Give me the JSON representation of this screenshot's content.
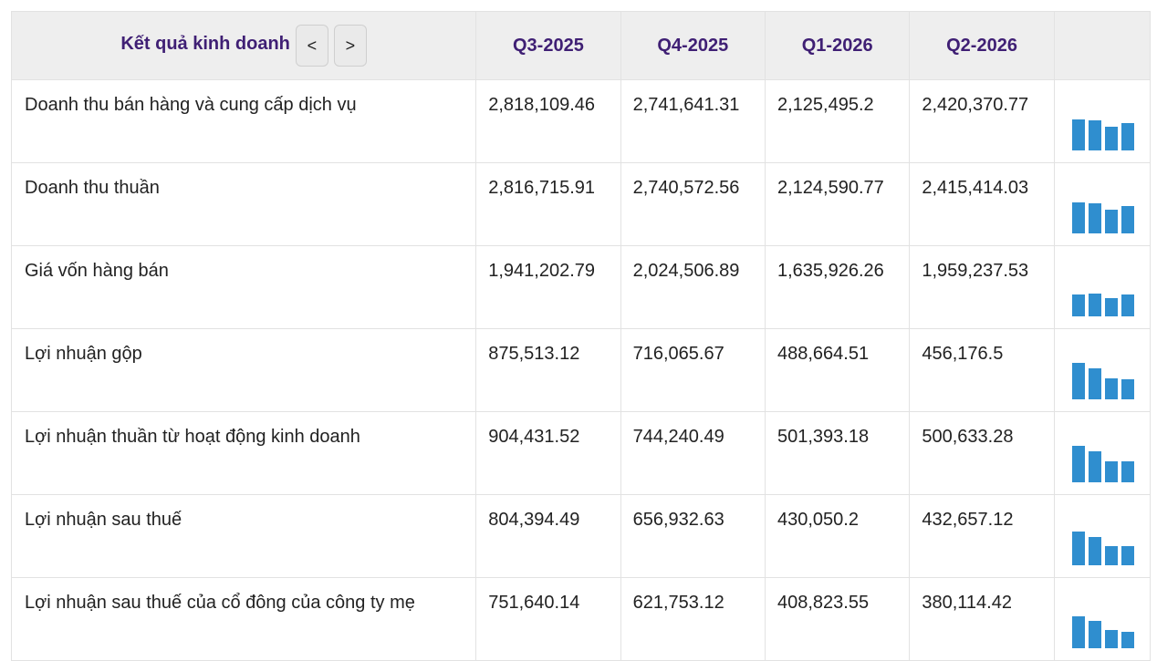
{
  "table": {
    "header_title": "Kết quả kinh doanh",
    "prev_label": "<",
    "next_label": ">",
    "quarters": [
      "Q3-2025",
      "Q4-2025",
      "Q1-2026",
      "Q2-2026"
    ],
    "rows": [
      {
        "label": "Doanh thu bán hàng và cung cấp dịch vụ",
        "values": [
          "2,818,109.46",
          "2,741,641.31",
          "2,125,495.2",
          "2,420,370.77"
        ],
        "chart_fractions": [
          0.85,
          0.83,
          0.65,
          0.74
        ]
      },
      {
        "label": "Doanh thu thuần",
        "values": [
          "2,816,715.91",
          "2,740,572.56",
          "2,124,590.77",
          "2,415,414.03"
        ],
        "chart_fractions": [
          0.85,
          0.83,
          0.65,
          0.74
        ]
      },
      {
        "label": "Giá vốn hàng bán",
        "values": [
          "1,941,202.79",
          "2,024,506.89",
          "1,635,926.26",
          "1,959,237.53"
        ],
        "chart_fractions": [
          0.6,
          0.62,
          0.5,
          0.6
        ]
      },
      {
        "label": "Lợi nhuận gộp",
        "values": [
          "875,513.12",
          "716,065.67",
          "488,664.51",
          "456,176.5"
        ],
        "chart_fractions": [
          1.0,
          0.85,
          0.58,
          0.54
        ]
      },
      {
        "label": "Lợi nhuận thuần từ hoạt động kinh doanh",
        "values": [
          "904,431.52",
          "744,240.49",
          "501,393.18",
          "500,633.28"
        ],
        "chart_fractions": [
          1.0,
          0.86,
          0.58,
          0.58
        ]
      },
      {
        "label": "Lợi nhuận sau thuế",
        "values": [
          "804,394.49",
          "656,932.63",
          "430,050.2",
          "432,657.12"
        ],
        "chart_fractions": [
          0.92,
          0.78,
          0.52,
          0.52
        ]
      },
      {
        "label": "Lợi nhuận sau thuế của cổ đông của công ty mẹ",
        "values": [
          "751,640.14",
          "621,753.12",
          "408,823.55",
          "380,114.42"
        ],
        "chart_fractions": [
          0.88,
          0.75,
          0.5,
          0.46
        ]
      }
    ]
  },
  "colors": {
    "header_text": "#3f1f74",
    "header_bg": "#eeeeee",
    "bar": "#2f8ecf"
  }
}
